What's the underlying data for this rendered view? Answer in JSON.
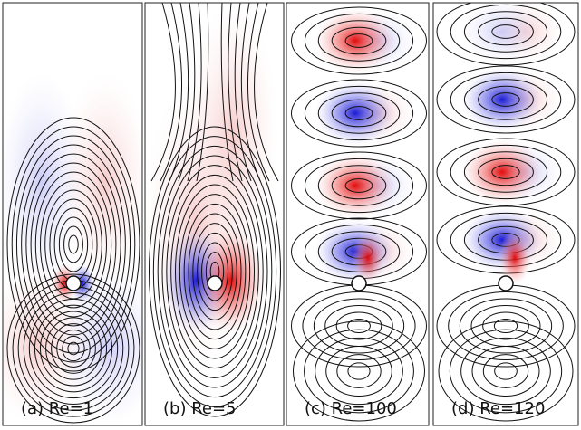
{
  "panels": [
    {
      "label": "(a) Re=1"
    },
    {
      "label": "(b) Re=5"
    },
    {
      "label": "(c) Re=100"
    },
    {
      "label": "(d) Re=120"
    }
  ]
}
